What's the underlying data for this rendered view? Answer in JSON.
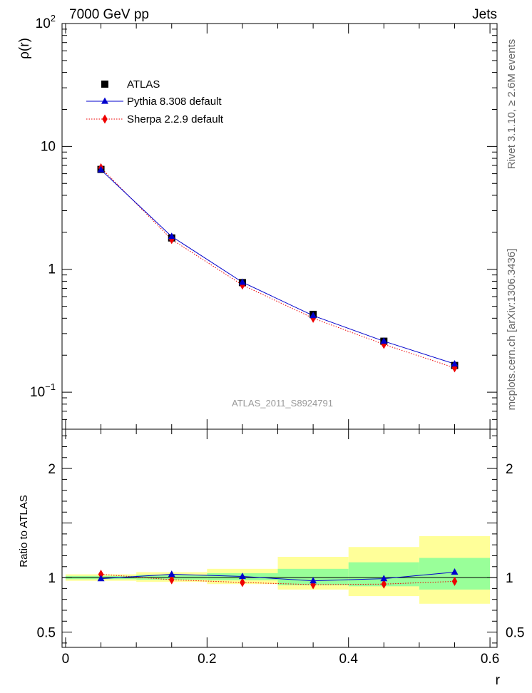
{
  "header": {
    "left_title": "7000 GeV pp",
    "right_title": "Jets"
  },
  "side": {
    "rivet_text": "Rivet 3.1.10, ≥ 2.6M events",
    "mcplots_text": "mcplots.cern.ch [arXiv:1306.3436]"
  },
  "watermark": "ATLAS_2011_S8924791",
  "colors": {
    "atlas": "#000000",
    "pythia": "#0000cc",
    "sherpa": "#ee0000",
    "band_inner": "#99ff99",
    "band_outer": "#ffff99"
  },
  "legend": [
    {
      "label": "ATLAS",
      "marker": "square"
    },
    {
      "label": "Pythia 8.308 default",
      "marker": "triangle"
    },
    {
      "label": "Sherpa 2.2.9 default",
      "marker": "diamond"
    }
  ],
  "chart_data": [
    {
      "type": "line",
      "panel": "main",
      "ylabel": "ρ(r)",
      "ylog": true,
      "ylim": [
        0.05,
        100
      ],
      "xlim": [
        -0.005,
        0.61
      ],
      "yticks": [
        {
          "value": 0.1,
          "base": "10",
          "exp": "−1"
        },
        {
          "value": 1,
          "base": "1",
          "exp": ""
        },
        {
          "value": 10,
          "base": "10",
          "exp": ""
        },
        {
          "value": 100,
          "base": "10",
          "exp": "2"
        }
      ],
      "x": [
        0.05,
        0.15,
        0.25,
        0.35,
        0.45,
        0.55
      ],
      "series": [
        {
          "name": "ATLAS",
          "values": [
            6.5,
            1.8,
            0.78,
            0.43,
            0.26,
            0.165
          ]
        },
        {
          "name": "Pythia 8.308 default",
          "values": [
            6.45,
            1.85,
            0.785,
            0.42,
            0.26,
            0.17
          ]
        },
        {
          "name": "Sherpa 2.2.9 default",
          "values": [
            6.7,
            1.75,
            0.745,
            0.4,
            0.245,
            0.158
          ]
        }
      ]
    },
    {
      "type": "line",
      "panel": "ratio",
      "ylabel": "Ratio to ATLAS",
      "xlabel": "r",
      "ylim": [
        0.36,
        2.36
      ],
      "xlim": [
        -0.005,
        0.61
      ],
      "yticks": [
        {
          "value": 0.5,
          "label": "0.5"
        },
        {
          "value": 1,
          "label": "1"
        },
        {
          "value": 2,
          "label": "2"
        }
      ],
      "xticks": [
        {
          "value": 0,
          "label": "0"
        },
        {
          "value": 0.2,
          "label": "0.2"
        },
        {
          "value": 0.4,
          "label": "0.4"
        },
        {
          "value": 0.6,
          "label": "0.6"
        }
      ],
      "x": [
        0.05,
        0.15,
        0.25,
        0.35,
        0.45,
        0.55
      ],
      "bins": [
        [
          0,
          0.1
        ],
        [
          0.1,
          0.2
        ],
        [
          0.2,
          0.3
        ],
        [
          0.3,
          0.4
        ],
        [
          0.4,
          0.5
        ],
        [
          0.5,
          0.6
        ]
      ],
      "band_inner": [
        [
          0.985,
          1.015
        ],
        [
          0.98,
          1.025
        ],
        [
          0.975,
          1.04
        ],
        [
          0.93,
          1.08
        ],
        [
          0.92,
          1.14
        ],
        [
          0.89,
          1.18
        ]
      ],
      "band_outer": [
        [
          0.97,
          1.03
        ],
        [
          0.96,
          1.05
        ],
        [
          0.94,
          1.08
        ],
        [
          0.89,
          1.19
        ],
        [
          0.83,
          1.28
        ],
        [
          0.76,
          1.38
        ]
      ],
      "series": [
        {
          "name": "Pythia 8.308 default",
          "values": [
            0.99,
            1.03,
            1.01,
            0.97,
            0.99,
            1.05
          ]
        },
        {
          "name": "Sherpa 2.2.9 default",
          "values": [
            1.03,
            0.98,
            0.955,
            0.935,
            0.94,
            0.965
          ]
        }
      ]
    }
  ]
}
